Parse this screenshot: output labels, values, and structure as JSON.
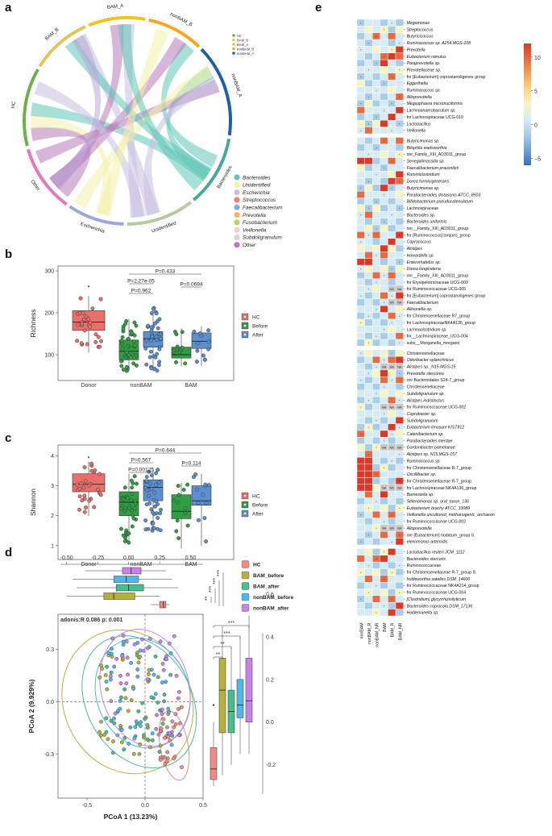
{
  "panels": {
    "a": {
      "label": "a",
      "sectors": [
        {
          "name": "BAM_A",
          "color": "#f0c419"
        },
        {
          "name": "nonBAM_B",
          "color": "#f5a623"
        },
        {
          "name": "nonBAM_A",
          "color": "#1f5fa8"
        },
        {
          "name": "Bacteroides",
          "color": "#4aa89a"
        },
        {
          "name": "Unidentified",
          "color": "#b8c8a0"
        },
        {
          "name": "Escherichia",
          "color": "#9ea8d8"
        },
        {
          "name": "Other",
          "color": "#e07ab8"
        },
        {
          "name": "HC",
          "color": "#6bb04a"
        },
        {
          "name": "BAM_B",
          "color": "#d9c95a"
        }
      ],
      "mini_legend": [
        "HC",
        "BAM_B",
        "BAM_A",
        "nonBAM_B",
        "nonBAM_A"
      ],
      "legend": [
        {
          "name": "Bacteroides",
          "color": "#5ec7b7"
        },
        {
          "name": "Unidentified",
          "color": "#f3f0a8"
        },
        {
          "name": "Escherichia",
          "color": "#c6c0e0"
        },
        {
          "name": "Streptococcus",
          "color": "#f0807a"
        },
        {
          "name": "Faecalibacterium",
          "color": "#7fb0d8"
        },
        {
          "name": "Prevotella",
          "color": "#f8b26a"
        },
        {
          "name": "Fusobacterium",
          "color": "#b5d56a"
        },
        {
          "name": "Veillonella",
          "color": "#f8c8dc"
        },
        {
          "name": "Subdoligranulum",
          "color": "#d6d6d6"
        },
        {
          "name": "Other",
          "color": "#b67ab8"
        }
      ]
    },
    "b": {
      "label": "b",
      "chart_data": {
        "type": "box",
        "title": "",
        "ylabel": "Richness",
        "ylim": [
          50,
          300
        ],
        "yticks": [
          100,
          200,
          300
        ],
        "categories": [
          "Donor",
          "nonBAM",
          "BAM"
        ],
        "groups": [
          {
            "cat": "Donor",
            "series": "HC",
            "min": 105,
            "q1": 158,
            "med": 178,
            "q3": 205,
            "max": 240,
            "outliers": [
              263
            ]
          },
          {
            "cat": "nonBAM",
            "series": "Before",
            "min": 60,
            "q1": 88,
            "med": 108,
            "q3": 135,
            "max": 185,
            "outliers": []
          },
          {
            "cat": "nonBAM",
            "series": "After",
            "min": 60,
            "q1": 118,
            "med": 138,
            "q3": 155,
            "max": 215,
            "outliers": []
          },
          {
            "cat": "BAM",
            "series": "Before",
            "min": 72,
            "q1": 92,
            "med": 100,
            "q3": 118,
            "max": 163,
            "outliers": []
          },
          {
            "cat": "BAM",
            "series": "After",
            "min": 73,
            "q1": 115,
            "med": 132,
            "q3": 152,
            "max": 168,
            "outliers": []
          }
        ],
        "pvalues": [
          "P=0.962",
          "P=2.27e-05",
          "P=0.433",
          "P=0.0694"
        ],
        "legend": [
          {
            "name": "HC",
            "color": "#e8706a"
          },
          {
            "name": "Before",
            "color": "#2f9e44"
          },
          {
            "name": "After",
            "color": "#5b8fd0"
          }
        ]
      }
    },
    "c": {
      "label": "c",
      "chart_data": {
        "type": "box",
        "ylabel": "Shannon",
        "ylim": [
          0.7,
          4.2
        ],
        "yticks": [
          1,
          2,
          3,
          4
        ],
        "categories": [
          "Donor",
          "nonBAM",
          "BAM"
        ],
        "groups": [
          {
            "cat": "Donor",
            "series": "HC",
            "min": 2.0,
            "q1": 2.8,
            "med": 3.05,
            "q3": 3.4,
            "max": 3.8,
            "outliers": [
              3.95
            ]
          },
          {
            "cat": "nonBAM",
            "series": "Before",
            "min": 1.1,
            "q1": 2.0,
            "med": 2.45,
            "q3": 2.8,
            "max": 3.4,
            "outliers": []
          },
          {
            "cat": "nonBAM",
            "series": "After",
            "min": 1.5,
            "q1": 2.5,
            "med": 2.95,
            "q3": 3.2,
            "max": 3.6,
            "outliers": []
          },
          {
            "cat": "BAM",
            "series": "Before",
            "min": 0.9,
            "q1": 1.9,
            "med": 2.15,
            "q3": 2.7,
            "max": 3.1,
            "outliers": []
          },
          {
            "cat": "BAM",
            "series": "After",
            "min": 1.0,
            "q1": 2.35,
            "med": 2.5,
            "q3": 3.0,
            "max": 3.4,
            "outliers": []
          }
        ],
        "pvalues": [
          "P=0.00125",
          "P=0.567",
          "P=0.644",
          "P=0.114"
        ],
        "legend": [
          {
            "name": "HC",
            "color": "#e8706a"
          },
          {
            "name": "Before",
            "color": "#2f9e44"
          },
          {
            "name": "After",
            "color": "#5b8fd0"
          }
        ]
      }
    },
    "d": {
      "label": "d",
      "chart_data": {
        "type": "scatter",
        "annotation": "adonis:R 0.086 p: 0.001",
        "xlabel": "PCoA 1 (13.23%)",
        "ylabel": "PCoA 2 (9.929%)",
        "xlim": [
          -0.75,
          0.5
        ],
        "ylim": [
          -0.55,
          0.5
        ],
        "xticks": [
          -0.5,
          0.0,
          0.5
        ],
        "yticks": [
          -0.3,
          0.0,
          0.3
        ],
        "top_ticks": [
          "-0.50",
          "-0.25",
          "0.00",
          "0.25",
          "0.50"
        ],
        "right_ticks": [
          "0.6",
          "0.4",
          "0.2",
          "0.0",
          "-0.2"
        ],
        "sig": [
          "***",
          "***",
          "***",
          "***",
          "***",
          "***",
          "***",
          "**",
          "**",
          "**"
        ],
        "groups": [
          {
            "name": "HC",
            "color": "#f08a84"
          },
          {
            "name": "BAM_before",
            "color": "#b5b040"
          },
          {
            "name": "BAM_after",
            "color": "#46bf8c"
          },
          {
            "name": "nonBAM_before",
            "color": "#4fb6e8"
          },
          {
            "name": "nonBAM_after",
            "color": "#c783e8"
          }
        ],
        "top_boxes": [
          {
            "group": "nonBAM_after",
            "q1": -0.05,
            "med": 0.02,
            "q3": 0.1,
            "min": -0.35,
            "max": 0.3
          },
          {
            "group": "nonBAM_before",
            "q1": -0.12,
            "med": -0.02,
            "q3": 0.08,
            "min": -0.45,
            "max": 0.35
          },
          {
            "group": "BAM_after",
            "q1": -0.1,
            "med": 0.0,
            "q3": 0.12,
            "min": -0.42,
            "max": 0.4
          },
          {
            "group": "BAM_before",
            "q1": -0.2,
            "med": -0.12,
            "q3": 0.05,
            "min": -0.5,
            "max": 0.25
          },
          {
            "group": "HC",
            "q1": 0.25,
            "med": 0.28,
            "q3": 0.3,
            "min": 0.18,
            "max": 0.33
          }
        ],
        "right_boxes": [
          {
            "group": "HC",
            "q1": -0.27,
            "med": -0.22,
            "q3": -0.12,
            "min": -0.3,
            "max": 0.0,
            "outliers": [
              0.08
            ]
          },
          {
            "group": "BAM_before",
            "q1": -0.05,
            "med": 0.15,
            "q3": 0.3,
            "min": -0.25,
            "max": 0.45
          },
          {
            "group": "BAM_after",
            "q1": -0.05,
            "med": 0.05,
            "q3": 0.15,
            "min": -0.2,
            "max": 0.35
          },
          {
            "group": "nonBAM_before",
            "q1": 0.02,
            "med": 0.08,
            "q3": 0.2,
            "min": -0.15,
            "max": 0.4
          },
          {
            "group": "nonBAM_after",
            "q1": 0.0,
            "med": 0.1,
            "q3": 0.3,
            "min": -0.15,
            "max": 0.5
          }
        ]
      }
    },
    "e": {
      "label": "e",
      "columns": [
        "nonBAM",
        "nonBAM_R",
        "nonBAM_NR",
        "BAM",
        "BAM_R",
        "BAM_NR"
      ],
      "colorbar": {
        "max": 10,
        "mid": 5,
        "zero": 0,
        "min": -5
      },
      "taxa": [
        [
          "Megamonas",
          "Streptococcus",
          "Butyricicoccus",
          "Ruminococcus sp. A254.MGS-108",
          "Prevotella",
          "Eubacterium ramulus",
          "Paraprevotella sp.",
          "Prevotellaceae sp.",
          "fnr [Eubacterium] coprostanoligenes group",
          "Eggerthella",
          "Ruminococcus sp.",
          "Alloprevotella",
          "Megasphaera micronuciformis",
          "Lachnoanaerobaculum sp.",
          "fnr Lachnospiraceae UCG-010",
          "Lactobacillus",
          "Veillonella"
        ],
        [
          "Butyricimonas sp.",
          "Bilophila wadsworthia",
          "onr_Family_XIII_AD3011_group",
          "Senegalimassilia sp.",
          "Faecalibacterium prausnitzii",
          "Ruminiclostridium",
          "Dorea formicigenerans",
          "Butyricimonas sp.",
          "Parabacteroides distasonis ATCC_8503",
          "Bifidobacterium pseudocatenulatum",
          "Lachnospiraceae",
          "Bacteroides sp.",
          "Bacteroides uniformis",
          "onr__Family_XIII_AD3011_group",
          "fnr [Ruminococcus] torques_group",
          "Coprococcus",
          "Alistipes",
          "Howardella sp.",
          "Enterorhabdus sp.",
          "Dorea longicatena",
          "onr__Family_XIII_AD3011_group",
          "fnr Erysipelotrichaceae UCG-003",
          "fnr Ruminococcaceae UCG-005",
          "fnr [Eubacterium] coprostanoligenes group",
          "Faecalibacterium",
          "Allisonella sp.",
          "fnr Christensenellaceae R7_group",
          "fnr LachnospiraceaeNK4A136_group",
          "Lachnoclostridium sp.",
          "fnr__Lachnospiraceae_UCG-004",
          "subs__Morganella_morganii"
        ],
        [
          "Christensenellaceae",
          "Odoribacter splanchnicus",
          "Alistipes sp._N15.MGS-15",
          "Prevotella stercorea",
          "onr Bacteroidales S24-7_group",
          "Christensenellaceae",
          "Subdoligranulum sp.",
          "Alistipes indistinctus",
          "fnr Ruminococcaceae UCG-002",
          "Coprobacter sp.",
          "Subdoligranulum",
          "Eubacterium limosum KIST812",
          "Catenibacterium sp.",
          "Parabacteroides merdae",
          "Gordonibacter pamelaeae",
          "Alistipes sp. N15.MGS-157",
          "Ruminococcus sp.",
          "fnr Christensenellaceae R-7_group",
          "Oscillibacter sp.",
          "fnr Christensenellaceae R-7_group",
          "fnr Lachnospiraceae NK4A136_group",
          "Barnesiella sp.",
          "Selenomonas sp. oral_taxon_136",
          "Eubacterium brachy ATCC_33089",
          "Veillonella uncultured_methanogenic_archaeon",
          "fnr Ruminococcaceae UCG-002",
          "Alloprevotella",
          "onr [Eubacterium] nodatum_group S",
          "elenomonas artemidis"
        ],
        [
          "Lactobacillus reuteri JCM_1112",
          "Bacteroides stercoris",
          "Ruminococcaceae",
          "fnr Christensenellaceae R-7_group S",
          "huttleworthia satelles DSM_14600",
          "fnr Ruminococcaceae NK4A214_group",
          "fnr Ruminococcaceae UCG-004",
          "[Clostridium] glycyrrhizinilyticum",
          "Bacteroides coprocola DSM_17136",
          "Holdemanella sp."
        ]
      ]
    }
  }
}
